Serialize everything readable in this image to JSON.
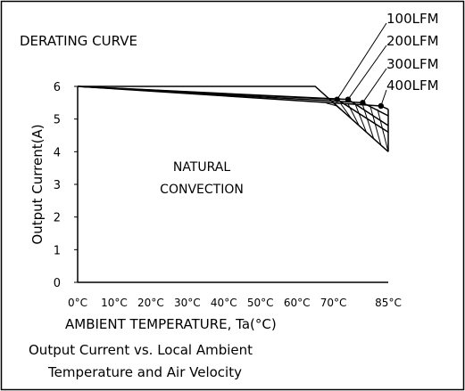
{
  "chart_data": {
    "type": "area",
    "title": "DERATING CURVE",
    "xlabel": "AMBIENT TEMPERATURE, Ta(°C)",
    "ylabel": "Output Current(A)",
    "caption": [
      "Output Current vs. Local Ambient",
      "Temperature and Air Velocity"
    ],
    "x_ticks": [
      "0°C",
      "10°C",
      "20°C",
      "30°C",
      "40°C",
      "50°C",
      "60°C",
      "70°C",
      "85°C"
    ],
    "y_ticks": [
      "0",
      "1",
      "2",
      "3",
      "4",
      "5",
      "6"
    ],
    "xlim": [
      0,
      85
    ],
    "ylim": [
      0,
      6
    ],
    "region_label": [
      "NATURAL",
      "CONVECTION"
    ],
    "series": [
      {
        "name": "NATURAL CONVECTION",
        "x": [
          0,
          65,
          85
        ],
        "y": [
          6,
          6,
          4
        ]
      },
      {
        "name": "100LFM",
        "x": [
          0,
          71,
          85
        ],
        "y": [
          6,
          5.6,
          4.6
        ]
      },
      {
        "name": "200LFM",
        "x": [
          0,
          74,
          85
        ],
        "y": [
          6,
          5.6,
          4.8
        ]
      },
      {
        "name": "300LFM",
        "x": [
          0,
          78,
          85
        ],
        "y": [
          6,
          5.5,
          5.1
        ]
      },
      {
        "name": "400LFM",
        "x": [
          0,
          83,
          85
        ],
        "y": [
          6,
          5.4,
          5.3
        ]
      }
    ],
    "markers": [
      {
        "series": "100LFM",
        "x": 71,
        "y": 5.6
      },
      {
        "series": "200LFM",
        "x": 74,
        "y": 5.6
      },
      {
        "series": "300LFM",
        "x": 78,
        "y": 5.5
      },
      {
        "series": "400LFM",
        "x": 83,
        "y": 5.4
      }
    ],
    "grid": false,
    "legend": "top-right"
  }
}
